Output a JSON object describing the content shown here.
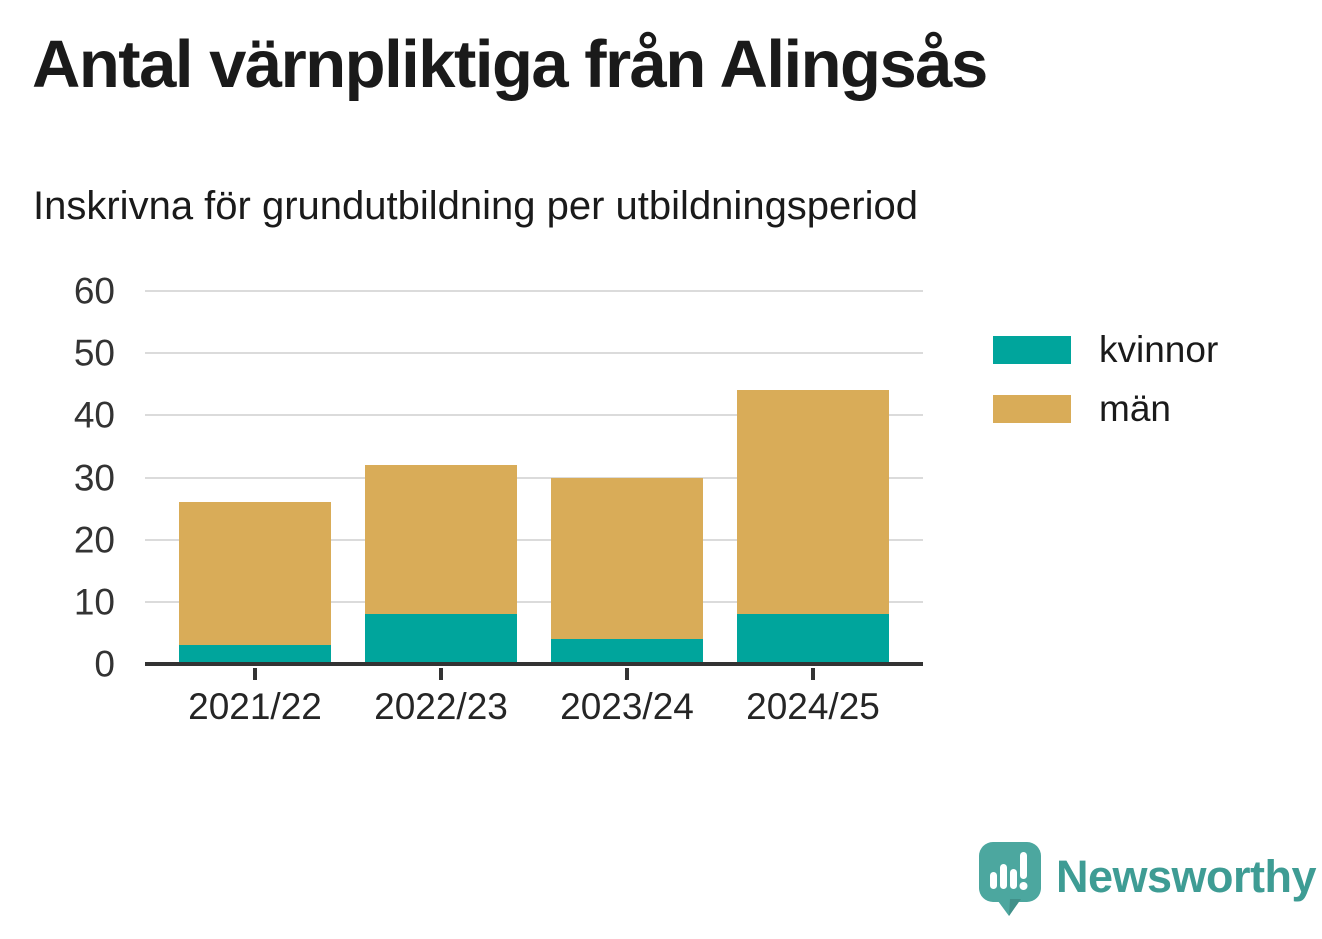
{
  "header": {
    "title": "Antal värnpliktiga från Alingsås",
    "subtitle": "Inskrivna för grundutbildning per utbildningsperiod"
  },
  "chart_data": {
    "type": "bar",
    "stacked": true,
    "title": "Antal värnpliktiga från Alingsås",
    "subtitle": "Inskrivna för grundutbildning per utbildningsperiod",
    "categories": [
      "2021/22",
      "2022/23",
      "2023/24",
      "2024/25"
    ],
    "series": [
      {
        "name": "kvinnor",
        "color": "#00A59C",
        "values": [
          3,
          8,
          4,
          8
        ]
      },
      {
        "name": "män",
        "color": "#D9AC58",
        "values": [
          23,
          24,
          26,
          36
        ]
      }
    ],
    "stacked_totals": [
      26,
      32,
      30,
      44
    ],
    "xlabel": "",
    "ylabel": "",
    "ylim": [
      0,
      60
    ],
    "yticks": [
      0,
      10,
      20,
      30,
      40,
      50,
      60
    ],
    "grid": "horizontal",
    "legend_position": "right"
  },
  "colors": {
    "kvinnor": "#00A59C",
    "man": "#D9AC58",
    "gridline": "#DBDBDB",
    "axis": "#333333",
    "text": "#1A1A1A",
    "logo_teal": "#4CA79F",
    "logo_text_teal": "#3E9C94"
  },
  "footer": {
    "brand": "Newsworthy"
  }
}
